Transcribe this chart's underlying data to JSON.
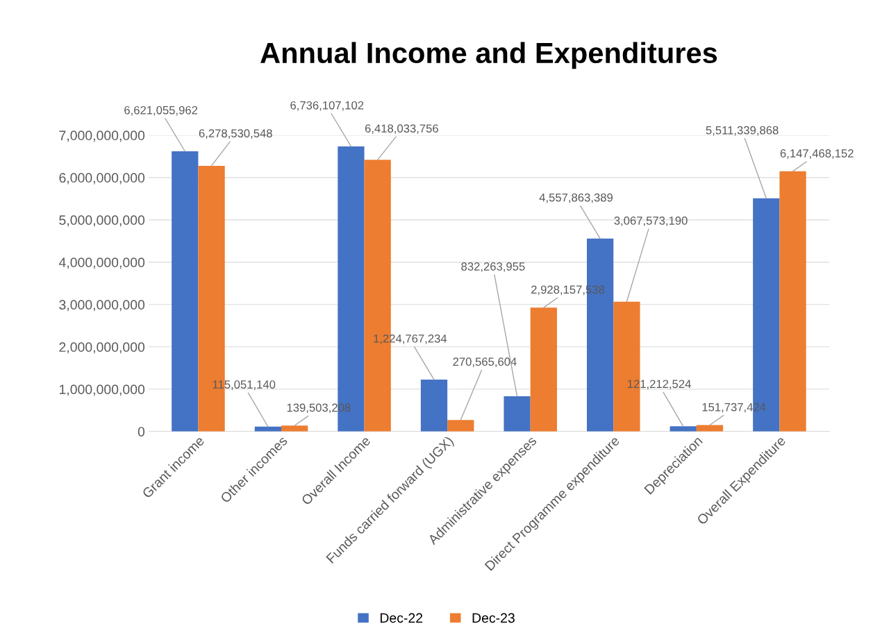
{
  "chart_data": {
    "type": "bar",
    "title": "Annual Income and Expenditures",
    "categories": [
      "Grant income",
      "Other incomes",
      "Overall Income",
      "Funds carried forward (UGX)",
      "Administrative expenses",
      "Direct Programme expenditure",
      "Depreciation",
      "Overall Expenditure"
    ],
    "series": [
      {
        "name": "Dec-22",
        "color": "#4472c4",
        "values": [
          6621055962,
          115051140,
          6736107102,
          1224767234,
          832263955,
          4557863389,
          121212524,
          5511339868
        ],
        "value_labels": [
          "6,621,055,962",
          "115,051,140",
          "6,736,107,102",
          "1,224,767,234",
          "832,263,955",
          "4,557,863,389",
          "121,212,524",
          "5,511,339,868"
        ]
      },
      {
        "name": "Dec-23",
        "color": "#ed7d31",
        "values": [
          6278530548,
          139503208,
          6418033756,
          270565604,
          2928157538,
          3067573190,
          151737424,
          6147468152
        ],
        "value_labels": [
          "6,278,530,548",
          "139,503,208",
          "6,418,033,756",
          "270,565,604",
          "2,928,157,538",
          "3,067,573,190",
          "151,737,424",
          "6,147,468,152"
        ]
      }
    ],
    "ylim": [
      0,
      7000000000
    ],
    "yticks": [
      0,
      {
        "value": 1000000000,
        "label": "1,000,000,000"
      },
      {
        "value": 2000000000,
        "label": "2,000,000,000"
      },
      {
        "value": 3000000000,
        "label": "3,000,000,000"
      },
      {
        "value": 4000000000,
        "label": "4,000,000,000"
      },
      {
        "value": 5000000000,
        "label": "5,000,000,000"
      },
      {
        "value": 6000000000,
        "label": "6,000,000,000"
      },
      {
        "value": 7000000000,
        "label": "7,000,000,000"
      }
    ],
    "grid": "y",
    "legend": "bottom"
  }
}
